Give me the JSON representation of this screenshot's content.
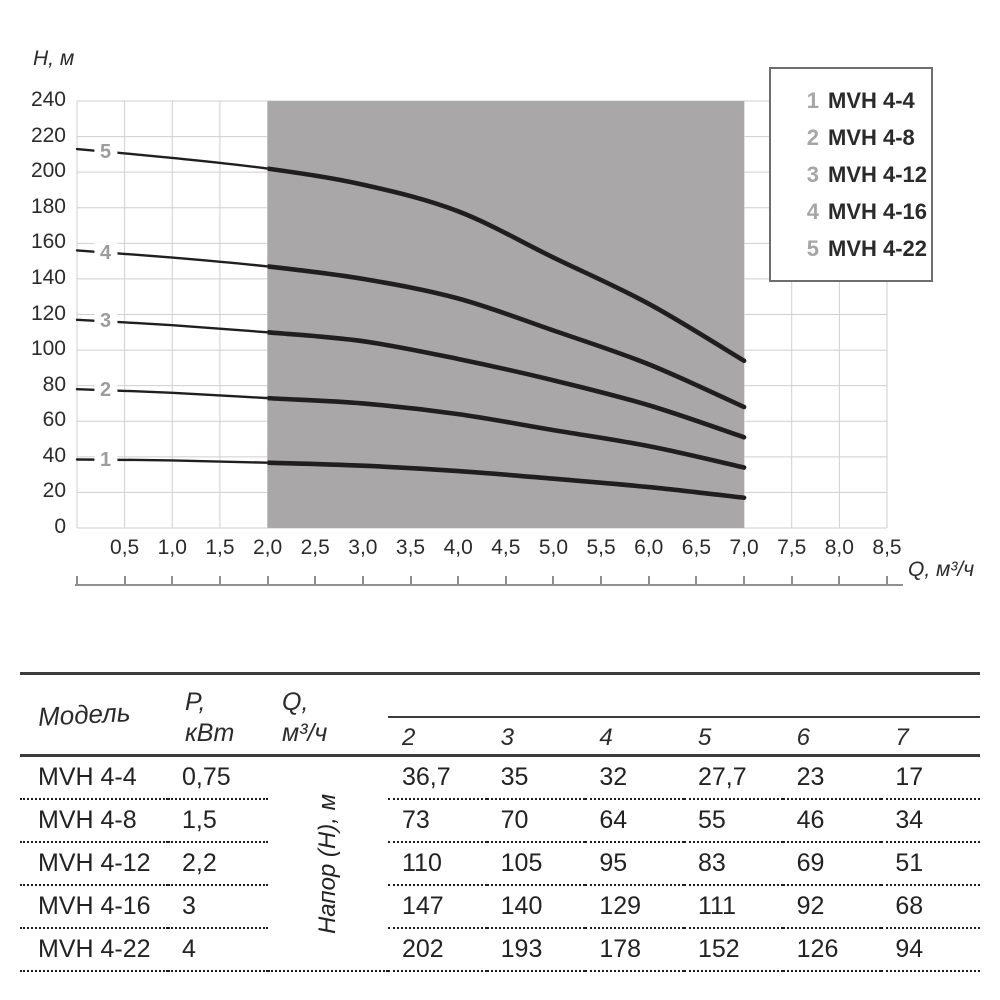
{
  "chart_data": {
    "type": "line",
    "title": "",
    "ylabel": "Н, м",
    "xlabel": "Q, м³/ч",
    "xlim": [
      0,
      8.5
    ],
    "ylim": [
      0,
      240
    ],
    "grid": true,
    "legend_position": "top-right",
    "y_ticks": [
      0,
      20,
      40,
      60,
      80,
      100,
      120,
      140,
      160,
      180,
      200,
      220,
      240
    ],
    "x_tick_step": 0.5,
    "x_tick_labels": [
      "0,5",
      "1,0",
      "1,5",
      "2,0",
      "2,5",
      "3,0",
      "3,5",
      "4,0",
      "4,5",
      "5,0",
      "5,5",
      "6,0",
      "6,5",
      "7,0",
      "7,5",
      "8,0",
      "8,5"
    ],
    "operating_range": [
      2,
      7
    ],
    "x": [
      0,
      1,
      2,
      3,
      4,
      5,
      6,
      7
    ],
    "curve_label_x": 0.3,
    "series": [
      {
        "id": "1",
        "name": "MVH 4-4",
        "values": [
          38.5,
          38,
          36.7,
          35,
          32,
          27.7,
          23,
          17
        ]
      },
      {
        "id": "2",
        "name": "MVH 4-8",
        "values": [
          78,
          76,
          73,
          70,
          64,
          55,
          46,
          34
        ]
      },
      {
        "id": "3",
        "name": "MVH 4-12",
        "values": [
          117,
          114,
          110,
          105,
          95,
          83,
          69,
          51
        ]
      },
      {
        "id": "4",
        "name": "MVH 4-16",
        "values": [
          156,
          152,
          147,
          140,
          129,
          111,
          92,
          68
        ]
      },
      {
        "id": "5",
        "name": "MVH 4-22",
        "values": [
          213,
          208,
          202,
          193,
          178,
          152,
          126,
          94
        ]
      }
    ]
  },
  "legend": {
    "items": [
      {
        "num": "1",
        "label": "MVH 4-4"
      },
      {
        "num": "2",
        "label": "MVH 4-8"
      },
      {
        "num": "3",
        "label": "MVH 4-12"
      },
      {
        "num": "4",
        "label": "MVH 4-16"
      },
      {
        "num": "5",
        "label": "MVH 4-22"
      }
    ]
  },
  "table": {
    "model_header": "Модель",
    "power_header_line1": "P,",
    "power_header_line2": "кВт",
    "flow_header_line1": "Q,",
    "flow_header_line2": "м³/ч",
    "rotated_label": "Напор (Н), м",
    "q_values": [
      "2",
      "3",
      "4",
      "5",
      "6",
      "7"
    ],
    "rows": [
      {
        "model": "MVH 4-4",
        "power": "0,75",
        "heads": [
          "36,7",
          "35",
          "32",
          "27,7",
          "23",
          "17"
        ]
      },
      {
        "model": "MVH 4-8",
        "power": "1,5",
        "heads": [
          "73",
          "70",
          "64",
          "55",
          "46",
          "34"
        ]
      },
      {
        "model": "MVH 4-12",
        "power": "2,2",
        "heads": [
          "110",
          "105",
          "95",
          "83",
          "69",
          "51"
        ]
      },
      {
        "model": "MVH 4-16",
        "power": "3",
        "heads": [
          "147",
          "140",
          "129",
          "111",
          "92",
          "68"
        ]
      },
      {
        "model": "MVH 4-22",
        "power": "4",
        "heads": [
          "202",
          "193",
          "178",
          "152",
          "126",
          "94"
        ]
      }
    ]
  },
  "colors": {
    "curve": "#211e1f",
    "band": "#a9a7a7",
    "grid": "#cfcfcf",
    "curve_label": "#9c9c9c",
    "axis_text": "#2b2b2b",
    "ruler": "#8f8f8f",
    "legend_border": "#6e6e6e",
    "legend_num": "#a6a6a6",
    "table_line": "#3c3c3c"
  }
}
